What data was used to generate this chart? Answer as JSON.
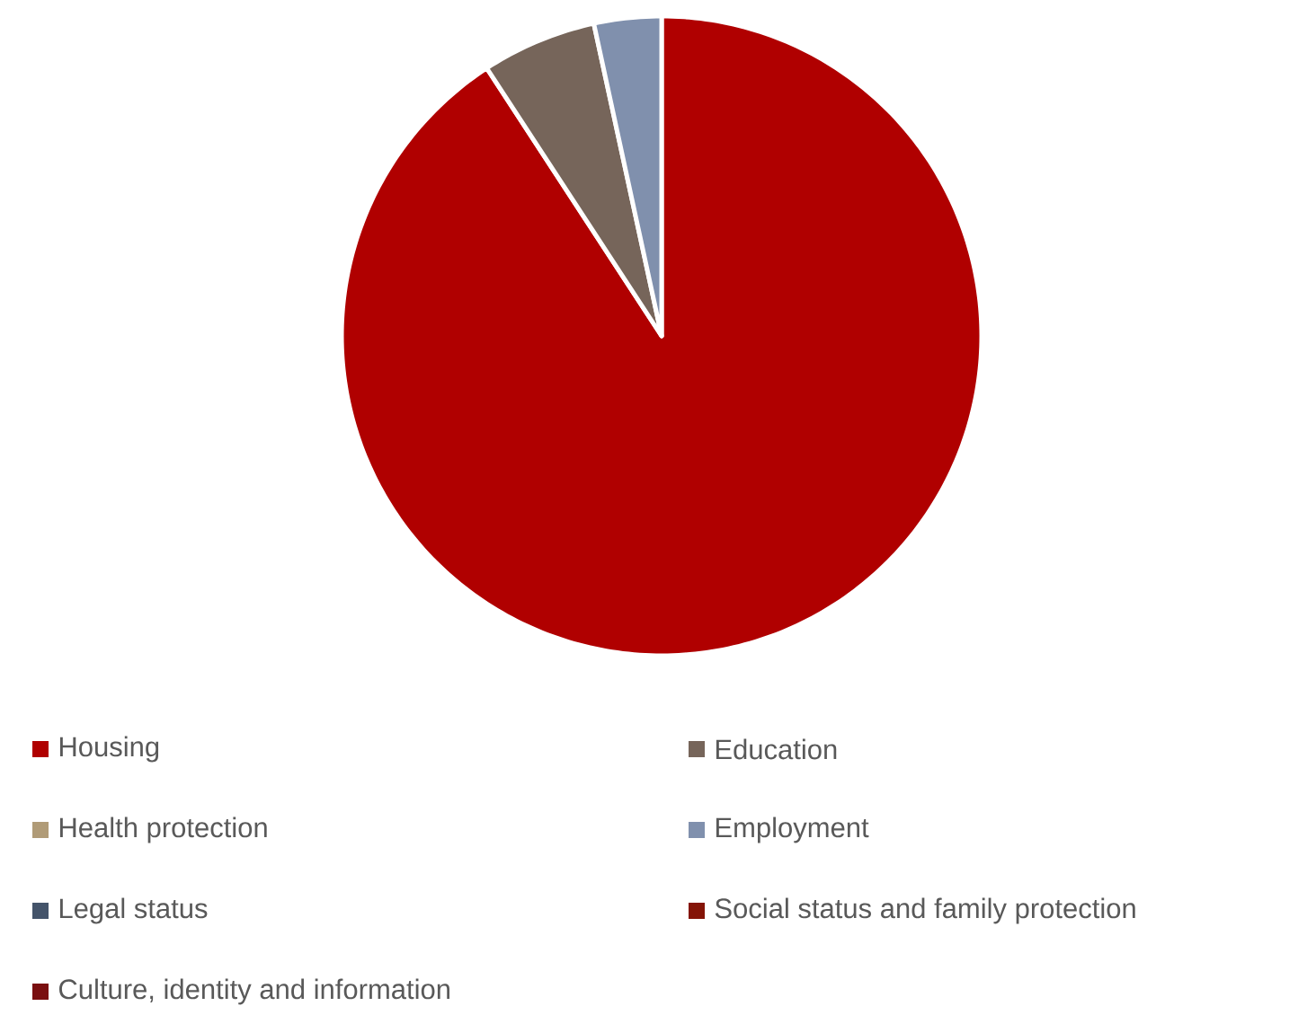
{
  "chart_data": {
    "type": "pie",
    "categories": [
      "Housing",
      "Education",
      "Health protection",
      "Employment",
      "Legal status",
      "Social status and family protection",
      "Culture, identity and  information"
    ],
    "values": [
      90.8,
      5.8,
      0,
      3.4,
      0,
      0,
      0
    ],
    "colors": [
      "#b00000",
      "#76655a",
      "#b09b77",
      "#8090ad",
      "#44546a",
      "#841407",
      "#7a0f10"
    ],
    "legend": "bottom"
  }
}
